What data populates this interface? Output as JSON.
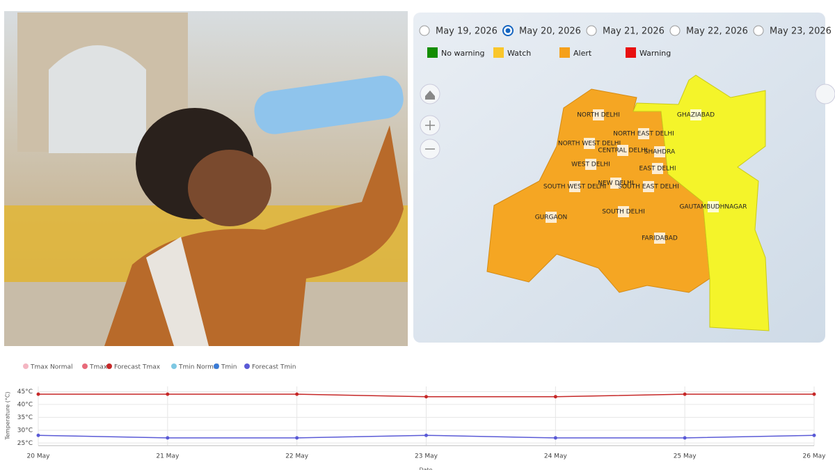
{
  "date_selector": {
    "options": [
      "May 19, 2026",
      "May 20, 2026",
      "May 21, 2026",
      "May 22, 2026",
      "May 23, 2026"
    ],
    "selected": 1
  },
  "map_legend": [
    {
      "label": "No warning",
      "color": "#138d00"
    },
    {
      "label": "Watch",
      "color": "#f9c62b"
    },
    {
      "label": "Alert",
      "color": "#f5a01a"
    },
    {
      "label": "Warning",
      "color": "#e81010"
    }
  ],
  "districts": [
    "NORTH DELHI",
    "NORTH EAST DELHI",
    "NORTH WEST DELHI",
    "CENTRAL DELHI",
    "SHAHDRA",
    "WEST DELHI",
    "EAST DELHI",
    "SOUTH WEST DELHI",
    "NEW DELHI",
    "SOUTH EAST DELHI",
    "GHAZIABAD",
    "GAUTAMBUDHNAGAR",
    "SOUTH DELHI",
    "GURGAON",
    "FARIDABAD"
  ],
  "chart_data": {
    "type": "line",
    "x_label": "Date",
    "y_label": "Temperature (°C)",
    "categories": [
      "20 May",
      "21 May",
      "22 May",
      "23 May",
      "24 May",
      "25 May",
      "26 May"
    ],
    "series": [
      {
        "name": "Tmax Normal",
        "color": "#f4b6c2",
        "values": [
          null,
          null,
          null,
          null,
          null,
          null,
          null
        ]
      },
      {
        "name": "Tmax",
        "color": "#e86a7a",
        "values": [
          null,
          null,
          null,
          null,
          null,
          null,
          null
        ]
      },
      {
        "name": "Forecast Tmax",
        "color": "#c62828",
        "values": [
          44,
          44,
          44,
          43,
          43,
          44,
          44
        ]
      },
      {
        "name": "Tmin Normal",
        "color": "#7ec8e3",
        "values": [
          null,
          null,
          null,
          null,
          null,
          null,
          null
        ]
      },
      {
        "name": "Tmin",
        "color": "#3a7bd5",
        "values": [
          null,
          null,
          null,
          null,
          null,
          null,
          null
        ]
      },
      {
        "name": "Forecast Tmin",
        "color": "#5a5ad6",
        "values": [
          28,
          27,
          27,
          28,
          27,
          27,
          28
        ]
      }
    ],
    "ylim": [
      24,
      47
    ],
    "yticks": [
      {
        "value": 25,
        "label": "25°C"
      },
      {
        "value": 30,
        "label": "30°C"
      },
      {
        "value": 35,
        "label": "35°C"
      },
      {
        "value": 40,
        "label": "40°C"
      },
      {
        "value": 45,
        "label": "45°C"
      }
    ],
    "grid": true
  }
}
